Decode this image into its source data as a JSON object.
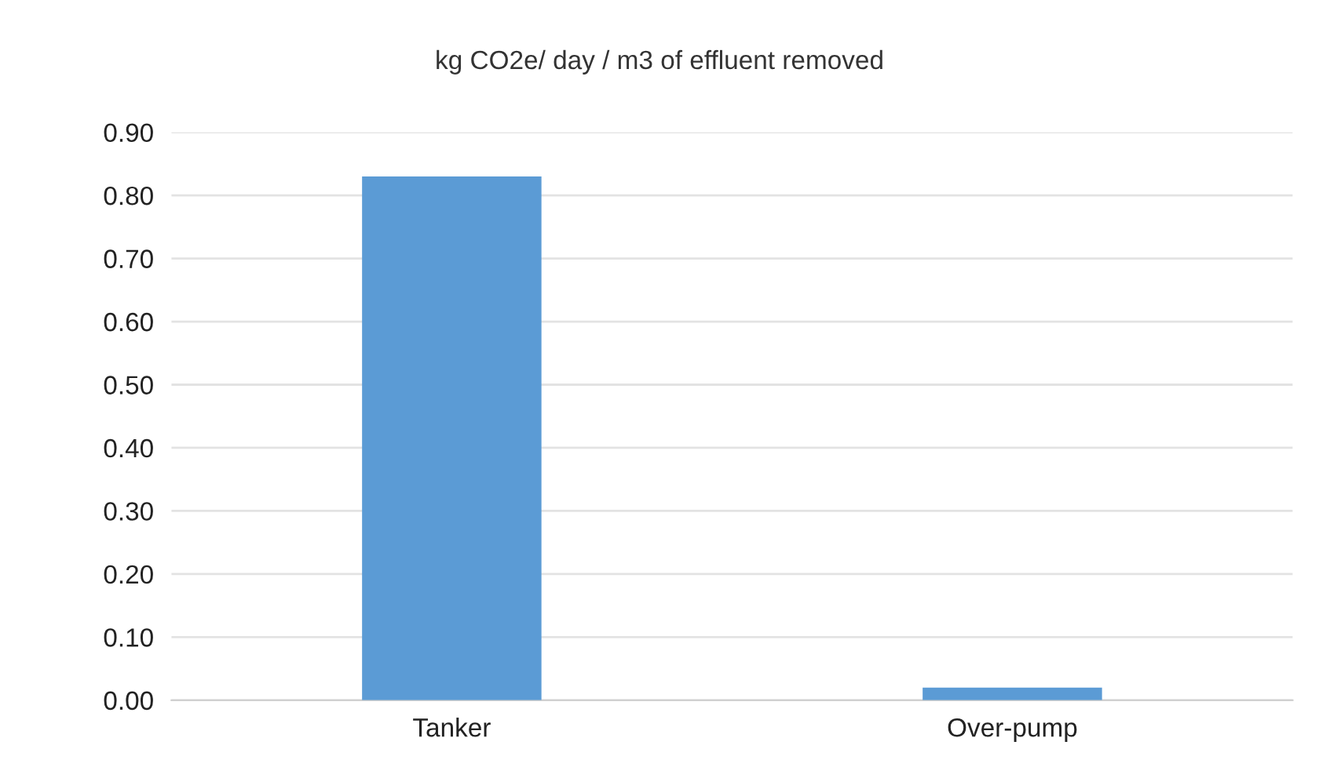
{
  "chart_data": {
    "type": "bar",
    "title": "kg CO2e/ day / m3 of effluent removed",
    "categories": [
      "Tanker",
      "Over-pump"
    ],
    "values": [
      0.83,
      0.02
    ],
    "color": "#5b9bd5",
    "ylim": [
      0,
      0.9
    ],
    "yticks": [
      {
        "value": 0,
        "label": "0.00"
      },
      {
        "value": 0.1,
        "label": "0.10"
      },
      {
        "value": 0.2,
        "label": "0.20"
      },
      {
        "value": 0.3,
        "label": "0.30"
      },
      {
        "value": 0.4,
        "label": "0.40"
      },
      {
        "value": 0.5,
        "label": "0.50"
      },
      {
        "value": 0.6,
        "label": "0.60"
      },
      {
        "value": 0.7,
        "label": "0.70"
      },
      {
        "value": 0.8,
        "label": "0.80"
      },
      {
        "value": 0.9,
        "label": "0.90"
      }
    ],
    "grid": "y"
  }
}
